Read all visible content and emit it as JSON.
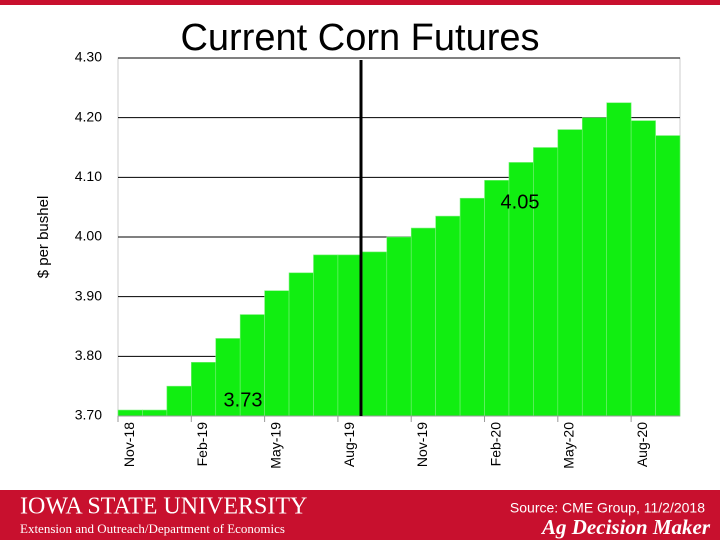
{
  "chart_data": {
    "type": "step-bar",
    "title": "Current Corn Futures",
    "y_label": "$ per bushel",
    "categories": [
      "Nov-18",
      null,
      null,
      "Feb-19",
      null,
      null,
      "May-19",
      null,
      null,
      "Aug-19",
      null,
      null,
      "Nov-19",
      null,
      null,
      "Feb-20",
      null,
      null,
      "May-20",
      null,
      null,
      "Aug-20",
      null
    ],
    "values": [
      3.71,
      3.71,
      3.75,
      3.79,
      3.83,
      3.87,
      3.91,
      3.94,
      3.97,
      3.97,
      3.975,
      4.0,
      4.015,
      4.035,
      4.065,
      4.095,
      4.125,
      4.15,
      4.18,
      4.2,
      4.225,
      4.195,
      4.17
    ],
    "color": "#11ee11",
    "ylim": [
      3.7,
      4.3
    ],
    "yticks": [
      {
        "value": 3.7,
        "label": "3.70"
      },
      {
        "value": 3.8,
        "label": "3.80"
      },
      {
        "value": 3.9,
        "label": "3.90"
      },
      {
        "value": 4.0,
        "label": "4.00"
      },
      {
        "value": 4.1,
        "label": "4.10"
      },
      {
        "value": 4.2,
        "label": "4.20"
      },
      {
        "value": 4.3,
        "label": "4.30"
      }
    ],
    "grid": true,
    "annotations": [
      "3.73",
      "4.05"
    ]
  },
  "footer": {
    "university": "Iowa State University",
    "department": "Extension and Outreach/Department of Economics",
    "source": "Source: CME Group, 11/2/2018",
    "brand": "Ag Decision Maker"
  }
}
